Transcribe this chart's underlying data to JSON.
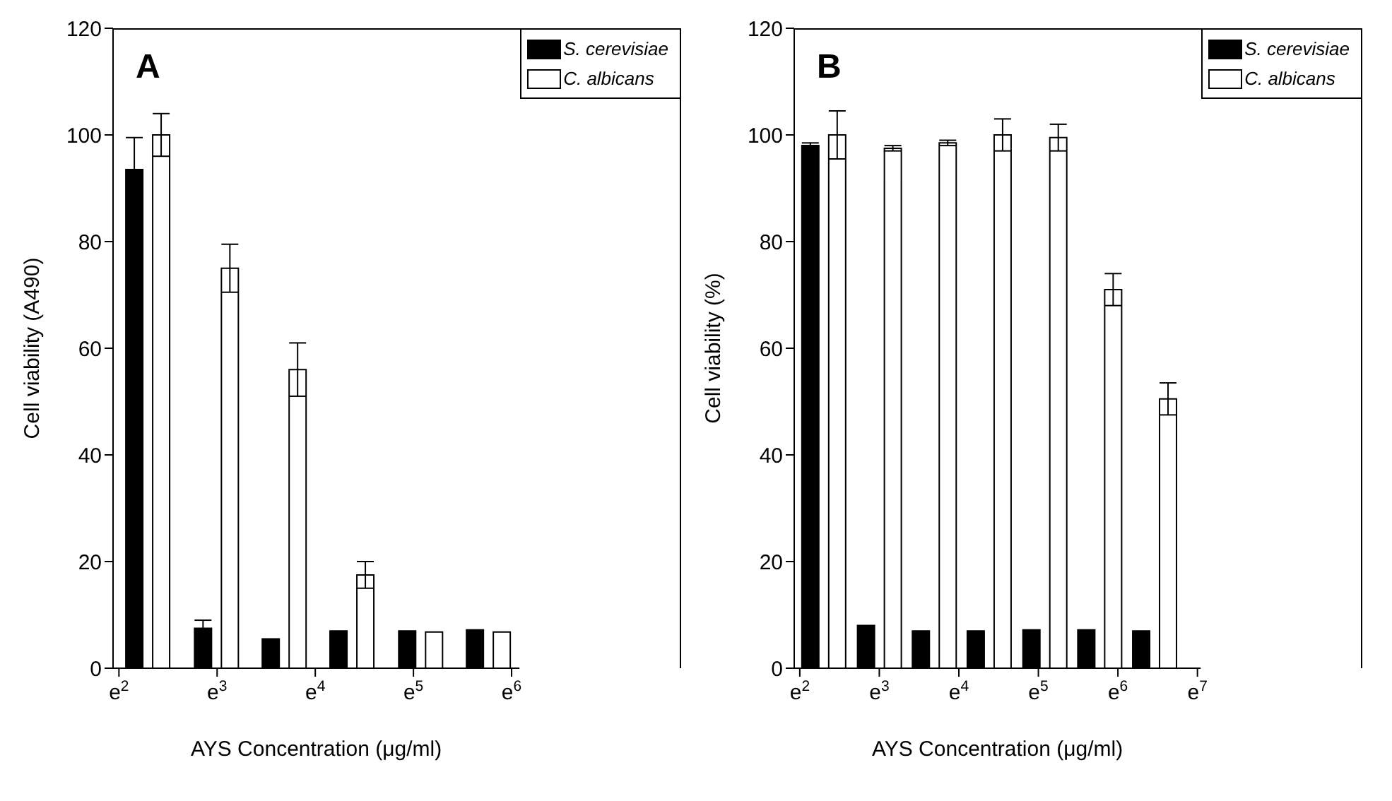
{
  "chart_data": [
    {
      "type": "bar",
      "annotations": [
        "A"
      ],
      "xlabel": "AYS Concentration (μg/ml)",
      "ylabel": "Cell viability (A490)",
      "x": [
        2.3,
        3.0,
        3.69,
        4.38,
        5.08,
        5.77
      ],
      "series": [
        {
          "name": "S. cerevisiae",
          "color": "#000000",
          "values": [
            93.5,
            7.5,
            5.5,
            7,
            7,
            7.2
          ],
          "errors": [
            6,
            1.5,
            null,
            null,
            null,
            null
          ]
        },
        {
          "name": "C. albicans",
          "color": "#ffffff",
          "values": [
            100,
            75,
            56,
            17.5,
            6.8,
            6.8
          ],
          "errors": [
            4,
            4.5,
            5,
            2.5,
            null,
            null
          ]
        }
      ],
      "xlim": [
        1.94,
        6.08
      ],
      "xticks": [
        {
          "value": 2,
          "label": "e$^{2}$"
        },
        {
          "value": 3,
          "label": "e$^{3}$"
        },
        {
          "value": 4,
          "label": "e$^{4}$"
        },
        {
          "value": 5,
          "label": "e$^{5}$"
        },
        {
          "value": 6,
          "label": "e$^{6}$"
        }
      ],
      "ylim": [
        0,
        120
      ],
      "yticks": [
        0,
        20,
        40,
        60,
        80,
        100,
        120
      ],
      "legend": "top right",
      "grid": false
    },
    {
      "type": "bar",
      "annotations": [
        "B"
      ],
      "xlabel": "AYS Concentration (μg/ml)",
      "ylabel": "Cell viability (%)",
      "x": [
        2.3,
        3.0,
        3.69,
        4.38,
        5.08,
        5.77,
        6.46
      ],
      "series": [
        {
          "name": "S. cerevisiae",
          "color": "#000000",
          "values": [
            98,
            8,
            7,
            7,
            7.2,
            7.2,
            7
          ],
          "errors": [
            0.5,
            null,
            null,
            null,
            null,
            null,
            null
          ]
        },
        {
          "name": "C. albicans",
          "color": "#ffffff",
          "values": [
            100,
            97.5,
            98.5,
            100,
            99.5,
            71,
            50.5
          ],
          "errors": [
            4.5,
            0.5,
            0.5,
            3,
            2.5,
            3,
            3
          ]
        }
      ],
      "xlim": [
        1.93,
        7.04
      ],
      "xticks": [
        {
          "value": 2,
          "label": "e$^{2}$"
        },
        {
          "value": 3,
          "label": "e$^{3}$"
        },
        {
          "value": 4,
          "label": "e$^{4}$"
        },
        {
          "value": 5,
          "label": "e$^{5}$"
        },
        {
          "value": 6,
          "label": "e$^{6}$"
        },
        {
          "value": 7,
          "label": "e$^{7}$"
        }
      ],
      "ylim": [
        0,
        120
      ],
      "yticks": [
        0,
        20,
        40,
        60,
        80,
        100,
        120
      ],
      "legend": "top right",
      "grid": false
    }
  ]
}
